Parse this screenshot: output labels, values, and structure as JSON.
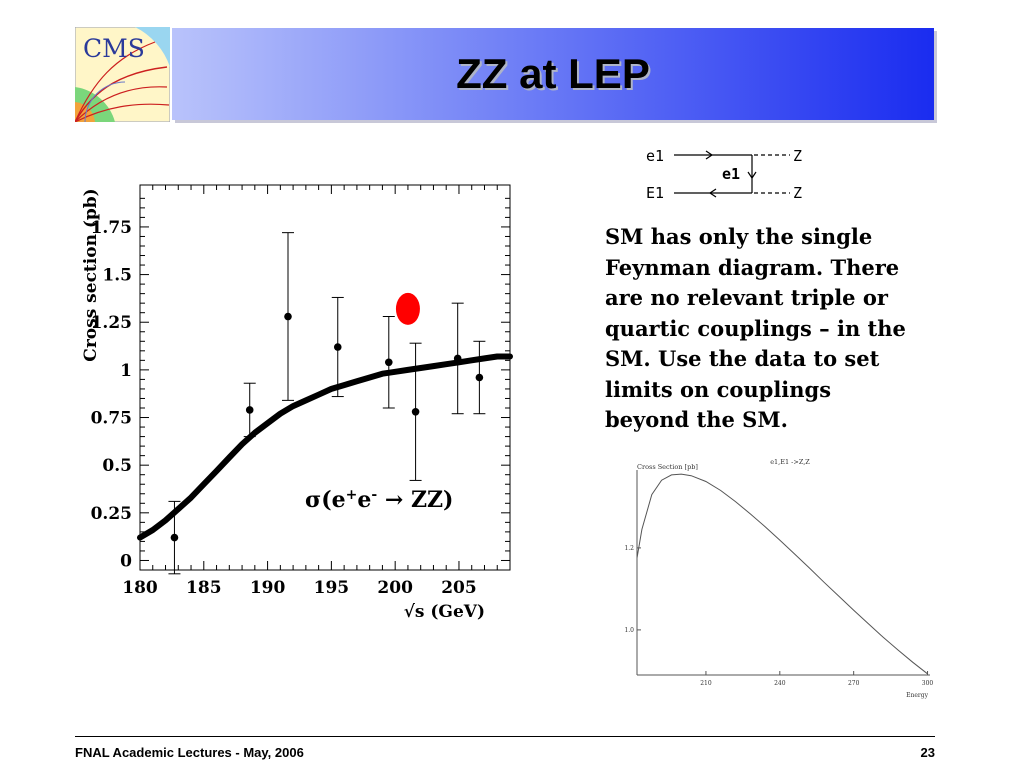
{
  "slide": {
    "title": "ZZ at LEP",
    "logo_text": "CMS",
    "body_text": "SM has only the single Feynman diagram. There are no relevant triple or quartic couplings – in the SM. Use the data to set limits on couplings beyond the SM.",
    "footer_left": "FNAL Academic Lectures - May, 2006",
    "footer_right": "23"
  },
  "feynman": {
    "labels": [
      "e1",
      "E1",
      "e1",
      "Z",
      "Z"
    ]
  },
  "chart_data": [
    {
      "type": "scatter",
      "title": "",
      "xlabel": "√s (GeV)",
      "ylabel": "Cross section (pb)",
      "annotation": "σ(e+e- → ZZ)",
      "annotation_parts": {
        "sigma": "σ(e",
        "plus": "+",
        "e2": "e",
        "minus": "-",
        "arrow": " → ZZ)"
      },
      "xlim": [
        180,
        209
      ],
      "ylim": [
        -0.05,
        1.97
      ],
      "x_ticks": [
        180,
        185,
        190,
        195,
        200,
        205
      ],
      "y_ticks": [
        0,
        0.25,
        0.5,
        0.75,
        1,
        1.25,
        1.5,
        1.75
      ],
      "y_tick_labels": [
        "0",
        "0.25",
        "0.5",
        "0.75",
        "1",
        "1.25",
        "1.5",
        "1.75"
      ],
      "points": [
        {
          "x": 182.7,
          "y": 0.12,
          "err": 0.19
        },
        {
          "x": 188.6,
          "y": 0.79,
          "err": 0.14
        },
        {
          "x": 191.6,
          "y": 1.28,
          "err": 0.44
        },
        {
          "x": 195.5,
          "y": 1.12,
          "err": 0.26
        },
        {
          "x": 199.5,
          "y": 1.04,
          "err": 0.24
        },
        {
          "x": 201.6,
          "y": 0.78,
          "err": 0.36
        },
        {
          "x": 204.9,
          "y": 1.06,
          "err": 0.29
        },
        {
          "x": 206.6,
          "y": 0.96,
          "err": 0.19
        }
      ],
      "highlight": {
        "x": 201.0,
        "y": 1.32,
        "color": "#ff0000"
      },
      "theory_curve": {
        "x": [
          180,
          181,
          182,
          183,
          184,
          185,
          186,
          187,
          188,
          189,
          190,
          191,
          192,
          193,
          194,
          195,
          196,
          197,
          198,
          199,
          200,
          201,
          202,
          203,
          204,
          205,
          206,
          207,
          208,
          209
        ],
        "y": [
          0.12,
          0.16,
          0.21,
          0.27,
          0.33,
          0.4,
          0.47,
          0.54,
          0.61,
          0.67,
          0.72,
          0.77,
          0.81,
          0.84,
          0.87,
          0.9,
          0.92,
          0.94,
          0.96,
          0.98,
          0.99,
          1.0,
          1.01,
          1.02,
          1.03,
          1.04,
          1.05,
          1.06,
          1.07,
          1.07
        ]
      }
    },
    {
      "type": "line",
      "title": "e1,E1 ->Z,Z",
      "xlabel": "Energy",
      "ylabel": "Cross Section [pb]",
      "xlim": [
        182,
        301
      ],
      "ylim": [
        0.89,
        1.39
      ],
      "x_ticks": [
        210,
        240,
        270,
        300
      ],
      "y_ticks": [
        1.0,
        1.2
      ],
      "y_tick_labels": [
        "1.0",
        "1.2"
      ],
      "series": [
        {
          "x": [
            182,
            184,
            188,
            192,
            196,
            200,
            204,
            210,
            216,
            222,
            228,
            234,
            240,
            246,
            252,
            258,
            264,
            270,
            276,
            282,
            288,
            294,
            300
          ],
          "y": [
            1.175,
            1.245,
            1.33,
            1.365,
            1.378,
            1.38,
            1.376,
            1.362,
            1.34,
            1.313,
            1.283,
            1.252,
            1.219,
            1.185,
            1.151,
            1.116,
            1.082,
            1.048,
            1.015,
            0.982,
            0.951,
            0.921,
            0.893
          ]
        }
      ]
    }
  ]
}
